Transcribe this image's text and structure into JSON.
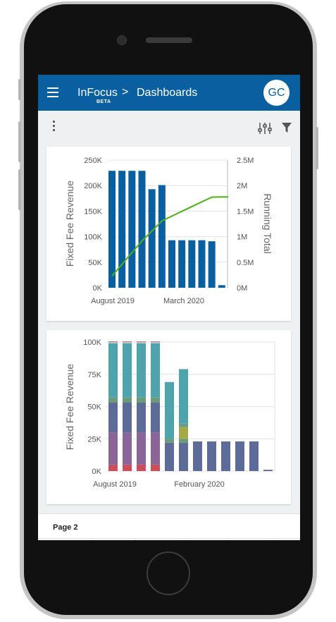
{
  "header": {
    "app_name": "InFocus",
    "badge": "BETA",
    "separator": ">",
    "breadcrumb_page": "Dashboards",
    "avatar_initials": "GC"
  },
  "toolbar": {
    "menu_icon": "kebab-menu-icon",
    "settings_icon": "sliders-icon",
    "filter_icon": "filter-icon"
  },
  "colors": {
    "header_bg": "#0a5fa1",
    "bar_blue": "#0a5fa1",
    "line_green": "#4caf1a"
  },
  "page2": {
    "title": "Page 2"
  },
  "chart_data": [
    {
      "type": "bar",
      "title": "",
      "ylabel": "Fixed Fee Revenue",
      "y2label": "Running Total",
      "x_tick_labels": [
        "August 2019",
        "March 2020"
      ],
      "ylim": [
        0,
        250000
      ],
      "y_ticks": [
        "0K",
        "50K",
        "100K",
        "150K",
        "200K",
        "250K"
      ],
      "y2lim": [
        0,
        2500000
      ],
      "y2_ticks": [
        "0M",
        "0.5M",
        "1M",
        "1.5M",
        "2M",
        "2.5M"
      ],
      "grid": true,
      "series": [
        {
          "type": "bar",
          "axis": "left",
          "color": "#0a5fa1",
          "values": [
            229000,
            229000,
            229000,
            229000,
            193000,
            201000,
            93000,
            93000,
            93000,
            93000,
            91000,
            5000
          ]
        },
        {
          "type": "line",
          "axis": "right",
          "color": "#4caf1a",
          "values": [
            229000,
            458000,
            687000,
            916000,
            1109000,
            1310000,
            1403000,
            1496000,
            1589000,
            1682000,
            1773000,
            1778000
          ]
        }
      ]
    },
    {
      "type": "bar",
      "stacked": true,
      "title": "",
      "ylabel": "Fixed Fee Revenue",
      "x_tick_labels": [
        "August 2019",
        "February 2020"
      ],
      "ylim": [
        0,
        100000
      ],
      "y_ticks": [
        "0K",
        "25K",
        "50K",
        "75K",
        "100K"
      ],
      "grid": true,
      "series": [
        {
          "color": "#cc4e5a",
          "values": [
            5000,
            5000,
            5000,
            5000,
            0,
            0,
            0,
            0,
            0,
            0,
            0,
            0
          ]
        },
        {
          "color": "#8a6597",
          "values": [
            25000,
            25000,
            25000,
            25000,
            0,
            0,
            0,
            0,
            0,
            0,
            0,
            0
          ]
        },
        {
          "color": "#5d6b98",
          "values": [
            23000,
            23000,
            23000,
            23000,
            22000,
            22000,
            23000,
            23000,
            23000,
            23000,
            23000,
            1000
          ]
        },
        {
          "color": "#6a9a7a",
          "values": [
            4000,
            4000,
            4000,
            4000,
            3000,
            3000,
            0,
            0,
            0,
            0,
            0,
            0
          ]
        },
        {
          "color": "#a6a948",
          "values": [
            0,
            0,
            0,
            0,
            0,
            9000,
            0,
            0,
            0,
            0,
            0,
            0
          ]
        },
        {
          "color": "#6b9b88",
          "values": [
            0,
            0,
            0,
            0,
            0,
            3000,
            0,
            0,
            0,
            0,
            0,
            0
          ]
        },
        {
          "color": "#4fa3ac",
          "values": [
            42000,
            42000,
            42000,
            42000,
            44000,
            42000,
            0,
            0,
            0,
            0,
            0,
            0
          ]
        },
        {
          "color": "#a7d0d5",
          "values": [
            1000,
            1000,
            1000,
            1000,
            0,
            0,
            0,
            0,
            0,
            0,
            0,
            0
          ]
        },
        {
          "color": "#e06666",
          "values": [
            500,
            500,
            500,
            500,
            0,
            0,
            0,
            0,
            0,
            0,
            0,
            0
          ]
        }
      ]
    }
  ]
}
